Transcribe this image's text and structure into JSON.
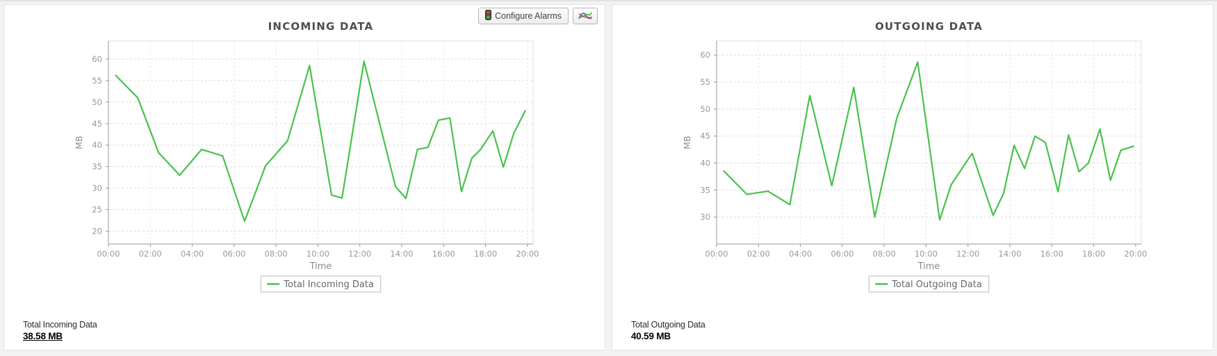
{
  "toolbar": {
    "configure_alarms_label": "Configure Alarms"
  },
  "cards": [
    {
      "total_label": "Total Incoming Data",
      "total_value": "38.58 MB"
    },
    {
      "total_label": "Total Outgoing Data",
      "total_value": "40.59 MB"
    }
  ],
  "colors": {
    "series_green": "#48c24a",
    "grid": "#dddddd",
    "axis": "#9a9a9a",
    "tick_text": "#999999",
    "title_text": "#4f4f4f"
  },
  "chart_data": [
    {
      "type": "line",
      "title": "INCOMING DATA",
      "ylabel": "MB",
      "xlabel": "Time",
      "legend": "Total Incoming Data",
      "legend_position": "bottom",
      "grid": true,
      "line_color": "#48c24a",
      "ylim": [
        17,
        64.2
      ],
      "xlim": [
        0,
        20.27
      ],
      "y_ticks": [
        20,
        25,
        30,
        35,
        40,
        45,
        50,
        55,
        60
      ],
      "x_tick_values": [
        0,
        2,
        4,
        6,
        8,
        10,
        12,
        14,
        16,
        18,
        20
      ],
      "x_tick_labels": [
        "00:00",
        "02:00",
        "04:00",
        "06:00",
        "08:00",
        "10:00",
        "12:00",
        "14:00",
        "16:00",
        "18:00",
        "20:00"
      ],
      "x": [
        0.35,
        1.4,
        2.4,
        3.4,
        4.45,
        5.45,
        6.5,
        7.5,
        8.55,
        9.6,
        10.65,
        11.15,
        12.2,
        13.7,
        14.2,
        14.75,
        15.25,
        15.75,
        16.3,
        16.85,
        17.35,
        17.75,
        18.35,
        18.85,
        19.35,
        19.9
      ],
      "y": [
        56.2,
        51,
        38.2,
        33,
        39,
        37.5,
        22.3,
        35.2,
        41,
        58.5,
        28.4,
        27.7,
        59.5,
        30.4,
        27.6,
        39,
        39.5,
        45.8,
        46.3,
        29.2,
        37,
        38.9,
        43.3,
        34.9,
        42.8,
        48
      ]
    },
    {
      "type": "line",
      "title": "OUTGOING DATA",
      "ylabel": "MB",
      "xlabel": "Time",
      "legend": "Total Outgoing Data",
      "legend_position": "bottom",
      "grid": true,
      "line_color": "#48c24a",
      "ylim": [
        25,
        62.6
      ],
      "xlim": [
        0,
        20.27
      ],
      "y_ticks": [
        30,
        35,
        40,
        45,
        50,
        55,
        60
      ],
      "x_tick_values": [
        0,
        2,
        4,
        6,
        8,
        10,
        12,
        14,
        16,
        18,
        20
      ],
      "x_tick_labels": [
        "00:00",
        "02:00",
        "04:00",
        "06:00",
        "08:00",
        "10:00",
        "12:00",
        "14:00",
        "16:00",
        "18:00",
        "20:00"
      ],
      "x": [
        0.35,
        1.45,
        2.45,
        3.5,
        4.45,
        5.5,
        6.55,
        7.55,
        8.6,
        9.6,
        10.65,
        11.2,
        12.2,
        13.2,
        13.7,
        14.2,
        14.7,
        15.2,
        15.7,
        16.3,
        16.8,
        17.3,
        17.75,
        18.3,
        18.8,
        19.3,
        19.9
      ],
      "y": [
        38.5,
        34.2,
        34.8,
        32.3,
        52.5,
        35.8,
        54,
        30,
        48.3,
        58.7,
        29.5,
        36,
        41.8,
        30.3,
        34.4,
        43.3,
        39,
        45,
        43.8,
        34.7,
        45.2,
        38.4,
        40,
        46.3,
        36.8,
        42.4,
        43.1
      ]
    }
  ]
}
